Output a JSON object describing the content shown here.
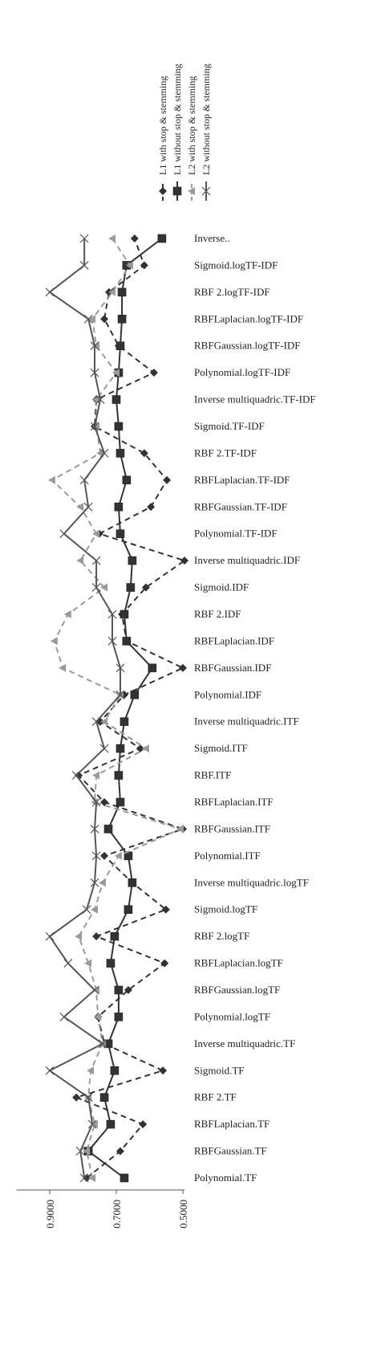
{
  "chart_data": {
    "type": "line",
    "categories": [
      "Polynomial.TF",
      "RBFGaussian.TF",
      "RBFLaplacian.TF",
      "RBF 2.TF",
      "Sigmoid.TF",
      "Inverse multiquadric.TF",
      "Polynomial.logTF",
      "RBFGaussian.logTF",
      "RBFLaplacian.logTF",
      "RBF 2.logTF",
      "Sigmoid.logTF",
      "Inverse multiquadric.logTF",
      "Polynomial.ITF",
      "RBFGaussian.ITF",
      "RBFLaplacian.ITF",
      "RBF.ITF",
      "Sigmoid.ITF",
      "Inverse multiquadric.ITF",
      "Polynomial.IDF",
      "RBFGaussian.IDF",
      "RBFLaplacian.IDF",
      "RBF 2.IDF",
      "Sigmoid.IDF",
      "Inverse multiquadric.IDF",
      "Polynomial.TF-IDF",
      "RBFGaussian.TF-IDF",
      "RBFLaplacian.TF-IDF",
      "RBF 2.TF-IDF",
      "Sigmoid.TF-IDF",
      "Inverse multiquadric.TF-IDF",
      "Polynomial.logTF-IDF",
      "RBFGaussian.logTF-IDF",
      "RBFLaplacian.logTF-IDF",
      "RBF 2.logTF-IDF",
      "Sigmoid.logTF-IDF",
      "Inverse.."
    ],
    "series": [
      {
        "name": "L1 with stop & stemming",
        "color": "#333333",
        "dashed": true,
        "marker": "diamond",
        "values": [
          0.789,
          0.688,
          0.62,
          0.82,
          0.56,
          0.736,
          0.755,
          0.664,
          0.555,
          0.76,
          0.551,
          0.652,
          0.736,
          0.5,
          0.736,
          0.813,
          0.628,
          0.748,
          0.676,
          0.5,
          0.669,
          0.683,
          0.611,
          0.495,
          0.751,
          0.596,
          0.548,
          0.616,
          0.765,
          0.76,
          0.587,
          0.693,
          0.736,
          0.722,
          0.616,
          0.645
        ]
      },
      {
        "name": "L1 without stop & stemming",
        "color": "#333333",
        "dashed": false,
        "marker": "square",
        "values": [
          0.676,
          0.784,
          0.717,
          0.736,
          0.705,
          0.724,
          0.693,
          0.693,
          0.717,
          0.705,
          0.664,
          0.652,
          0.664,
          0.724,
          0.688,
          0.693,
          0.688,
          0.676,
          0.645,
          0.592,
          0.669,
          0.676,
          0.657,
          0.652,
          0.688,
          0.693,
          0.669,
          0.688,
          0.693,
          0.7,
          0.693,
          0.688,
          0.683,
          0.683,
          0.669,
          0.563
        ]
      },
      {
        "name": "L2 with stop & stemming",
        "color": "#9a9a9a",
        "dashed": true,
        "marker": "triangle",
        "values": [
          0.772,
          0.789,
          0.765,
          0.784,
          0.777,
          0.741,
          0.755,
          0.76,
          0.784,
          0.813,
          0.765,
          0.741,
          0.693,
          0.507,
          0.765,
          0.76,
          0.611,
          0.736,
          0.688,
          0.861,
          0.886,
          0.845,
          0.736,
          0.808,
          0.76,
          0.808,
          0.893,
          0.748,
          0.76,
          0.76,
          0.7,
          0.76,
          0.772,
          0.712,
          0.659,
          0.712
        ]
      },
      {
        "name": "L2 without stop & stemming",
        "color": "#555555",
        "dashed": false,
        "marker": "x",
        "values": [
          0.796,
          0.808,
          0.772,
          0.784,
          0.9,
          0.741,
          0.857,
          0.765,
          0.845,
          0.9,
          0.789,
          0.765,
          0.76,
          0.765,
          0.76,
          0.82,
          0.736,
          0.76,
          0.688,
          0.688,
          0.712,
          0.712,
          0.76,
          0.76,
          0.857,
          0.784,
          0.796,
          0.736,
          0.765,
          0.748,
          0.765,
          0.765,
          0.784,
          0.9,
          0.796,
          0.796
        ]
      }
    ],
    "ylim": [
      0.5,
      1.0
    ],
    "yticks": [
      {
        "value": 0.5,
        "label": "0.5000"
      },
      {
        "value": 0.7,
        "label": "0.7000"
      },
      {
        "value": 0.9,
        "label": "0.9000"
      }
    ]
  }
}
